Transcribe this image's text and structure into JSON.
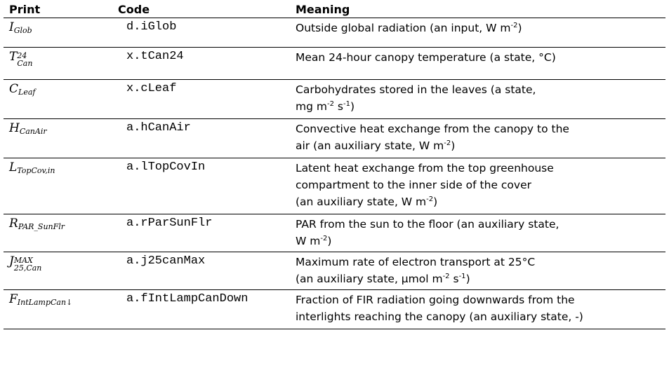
{
  "headers": {
    "print": "Print",
    "code": "Code",
    "meaning": "Meaning"
  },
  "rows": [
    {
      "print": {
        "base": "I",
        "sub": "Glob",
        "sup": ""
      },
      "code": "d.iGlob",
      "meaning": [
        "Outside global radiation (an input, W m",
        "-2",
        ")"
      ]
    },
    {
      "print": {
        "base": "T",
        "sub": "Can",
        "sup": "24"
      },
      "code": "x.tCan24",
      "meaning": [
        "Mean 24-hour canopy temperature (a state, °C)"
      ]
    },
    {
      "print": {
        "base": "C",
        "sub": "Leaf",
        "sup": ""
      },
      "code": "x.cLeaf",
      "meaning": [
        "Carbohydrates stored in the leaves (a state,",
        "mg m",
        "-2",
        " s",
        "-1",
        ")"
      ]
    },
    {
      "print": {
        "base": "H",
        "sub": "CanAir",
        "sup": ""
      },
      "code": "a.hCanAir",
      "meaning": [
        "Convective heat exchange from the canopy to the",
        "air (an auxiliary state, W m",
        "-2",
        ")"
      ]
    },
    {
      "print": {
        "base": "L",
        "sub": "TopCov,in",
        "sup": ""
      },
      "code": "a.lTopCovIn",
      "meaning": [
        "Latent heat exchange from the top greenhouse",
        "compartment to the inner side of the cover",
        "(an auxiliary state, W m",
        "-2",
        ")"
      ]
    },
    {
      "print": {
        "base": "R",
        "sub": "PAR_SunFlr",
        "sup": ""
      },
      "code": "a.rParSunFlr",
      "meaning": [
        "PAR from the sun to the floor (an auxiliary state,",
        "W m",
        "-2",
        ")"
      ]
    },
    {
      "print": {
        "base": "J",
        "sub": "25,Can",
        "sup": "MAX"
      },
      "code": "a.j25canMax",
      "meaning": [
        "Maximum rate of electron transport at 25°C",
        "(an auxiliary state, µmol m",
        "-2",
        " s",
        "-1",
        ")"
      ]
    },
    {
      "print": {
        "base": "F",
        "sub": "IntLampCan↓",
        "sup": ""
      },
      "code": "a.fIntLampCanDown",
      "meaning": [
        "Fraction of FIR radiation going downwards from the",
        "interlights reaching the canopy (an auxiliary state, -)"
      ]
    }
  ]
}
